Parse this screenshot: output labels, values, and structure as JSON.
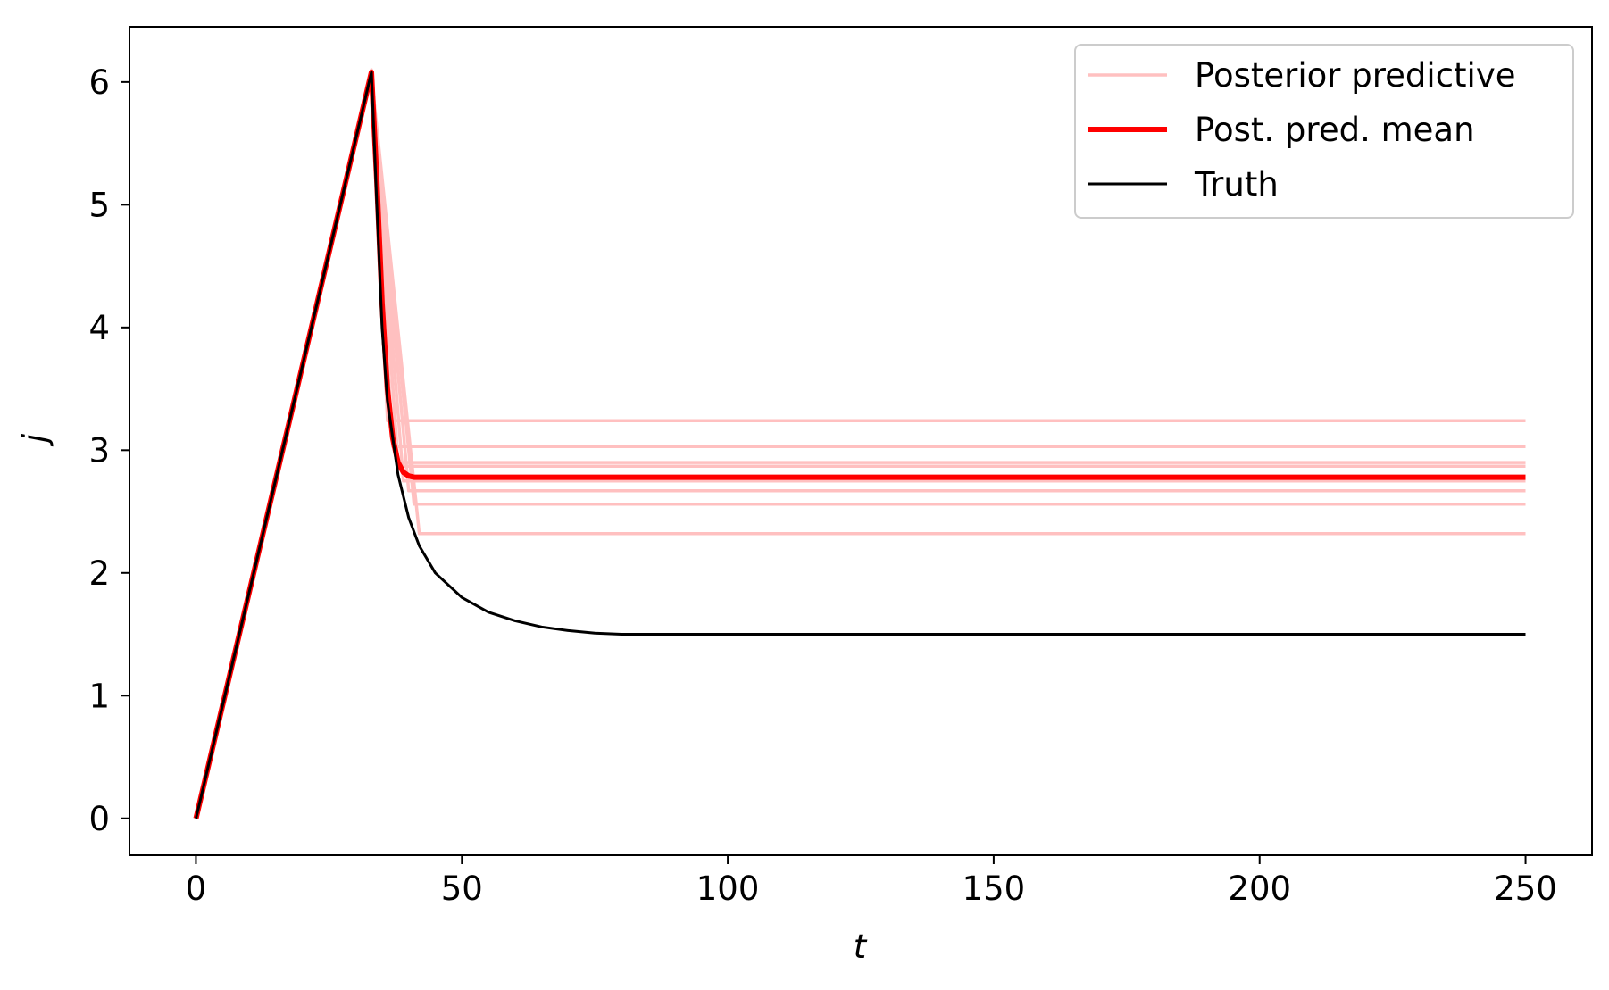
{
  "chart_data": {
    "type": "line",
    "title": "",
    "xlabel": "t",
    "ylabel": "j",
    "xlim": [
      -12.5,
      262.5
    ],
    "ylim": [
      -0.3,
      6.45
    ],
    "xticks": [
      0,
      50,
      100,
      150,
      200,
      250
    ],
    "yticks": [
      0,
      1,
      2,
      3,
      4,
      5,
      6
    ],
    "grid": false,
    "legend_position": "top-right",
    "legend": [
      "Posterior predictive",
      "Post. pred. mean",
      "Truth"
    ],
    "colors": {
      "posterior_predictive": "#ffc0c0",
      "post_pred_mean": "#ff0000",
      "truth": "#000000"
    },
    "posterior_predictive_samples": [
      {
        "x": [
          0,
          33,
          36,
          250
        ],
        "y": [
          0,
          6.1,
          3.24,
          3.24
        ]
      },
      {
        "x": [
          0,
          33,
          37,
          250
        ],
        "y": [
          0,
          6.08,
          3.03,
          3.03
        ]
      },
      {
        "x": [
          0,
          33,
          38,
          250
        ],
        "y": [
          0,
          6.06,
          2.9,
          2.9
        ]
      },
      {
        "x": [
          0,
          33,
          38,
          250
        ],
        "y": [
          0,
          6.07,
          2.87,
          2.87
        ]
      },
      {
        "x": [
          0,
          33,
          39,
          250
        ],
        "y": [
          0,
          6.05,
          2.75,
          2.75
        ]
      },
      {
        "x": [
          0,
          33,
          40,
          250
        ],
        "y": [
          0,
          6.04,
          2.67,
          2.67
        ]
      },
      {
        "x": [
          0,
          33,
          41,
          250
        ],
        "y": [
          0,
          6.06,
          2.56,
          2.56
        ]
      },
      {
        "x": [
          0,
          33,
          42,
          250
        ],
        "y": [
          0,
          6.05,
          2.32,
          2.32
        ]
      }
    ],
    "series": [
      {
        "name": "Post. pred. mean",
        "x": [
          0,
          33,
          34,
          35,
          36,
          37,
          38,
          39,
          40,
          41,
          250
        ],
        "y": [
          0,
          6.08,
          5.2,
          4.2,
          3.5,
          3.1,
          2.9,
          2.82,
          2.79,
          2.78,
          2.78
        ]
      },
      {
        "name": "Truth",
        "x": [
          0,
          33,
          34,
          35,
          36,
          38,
          40,
          42,
          45,
          50,
          55,
          60,
          65,
          70,
          75,
          80,
          250
        ],
        "y": [
          0,
          6.08,
          5.0,
          4.0,
          3.4,
          2.8,
          2.45,
          2.22,
          2.0,
          1.8,
          1.68,
          1.61,
          1.56,
          1.53,
          1.51,
          1.5,
          1.5
        ]
      }
    ]
  }
}
